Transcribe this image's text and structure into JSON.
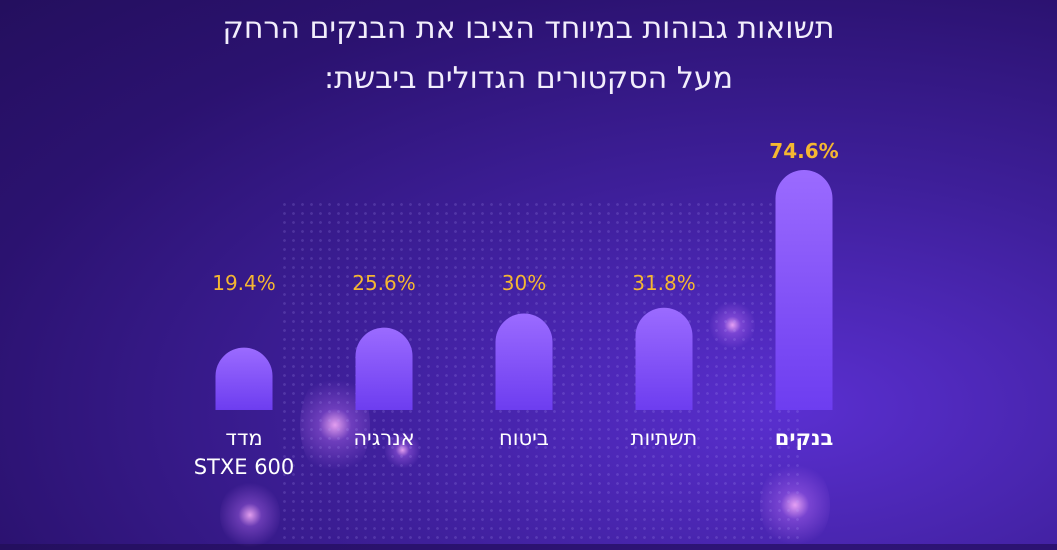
{
  "title_lines": [
    "תשואות גבוהות במיוחד הציבו את הבנקים הרחק",
    "מעל הסקטורים הגדולים ביבשת:"
  ],
  "colors": {
    "bar_top": "#9b6bff",
    "bar_bottom": "#6d3df0",
    "value_label": "#f5b731",
    "category_label": "#ffffff"
  },
  "chart_data": {
    "type": "bar",
    "title": "תשואות גבוהות במיוחד הציבו את הבנקים הרחק מעל הסקטורים הגדולים ביבשת:",
    "categories": [
      "בנקים",
      "תשתיות",
      "ביטוח",
      "אנרגיה",
      "מדד STXE 600"
    ],
    "category_lines": [
      [
        "בנקים"
      ],
      [
        "תשתיות"
      ],
      [
        "ביטוח"
      ],
      [
        "אנרגיה"
      ],
      [
        "מדד",
        "STXE 600"
      ]
    ],
    "values": [
      74.6,
      31.8,
      30,
      25.6,
      19.4
    ],
    "value_labels": [
      "74.6%",
      "31.8%",
      "30%",
      "25.6%",
      "19.4%"
    ],
    "highlight": "בנקים",
    "xlabel": "",
    "ylabel": "",
    "ylim": [
      0,
      74.6
    ],
    "grid": false
  }
}
